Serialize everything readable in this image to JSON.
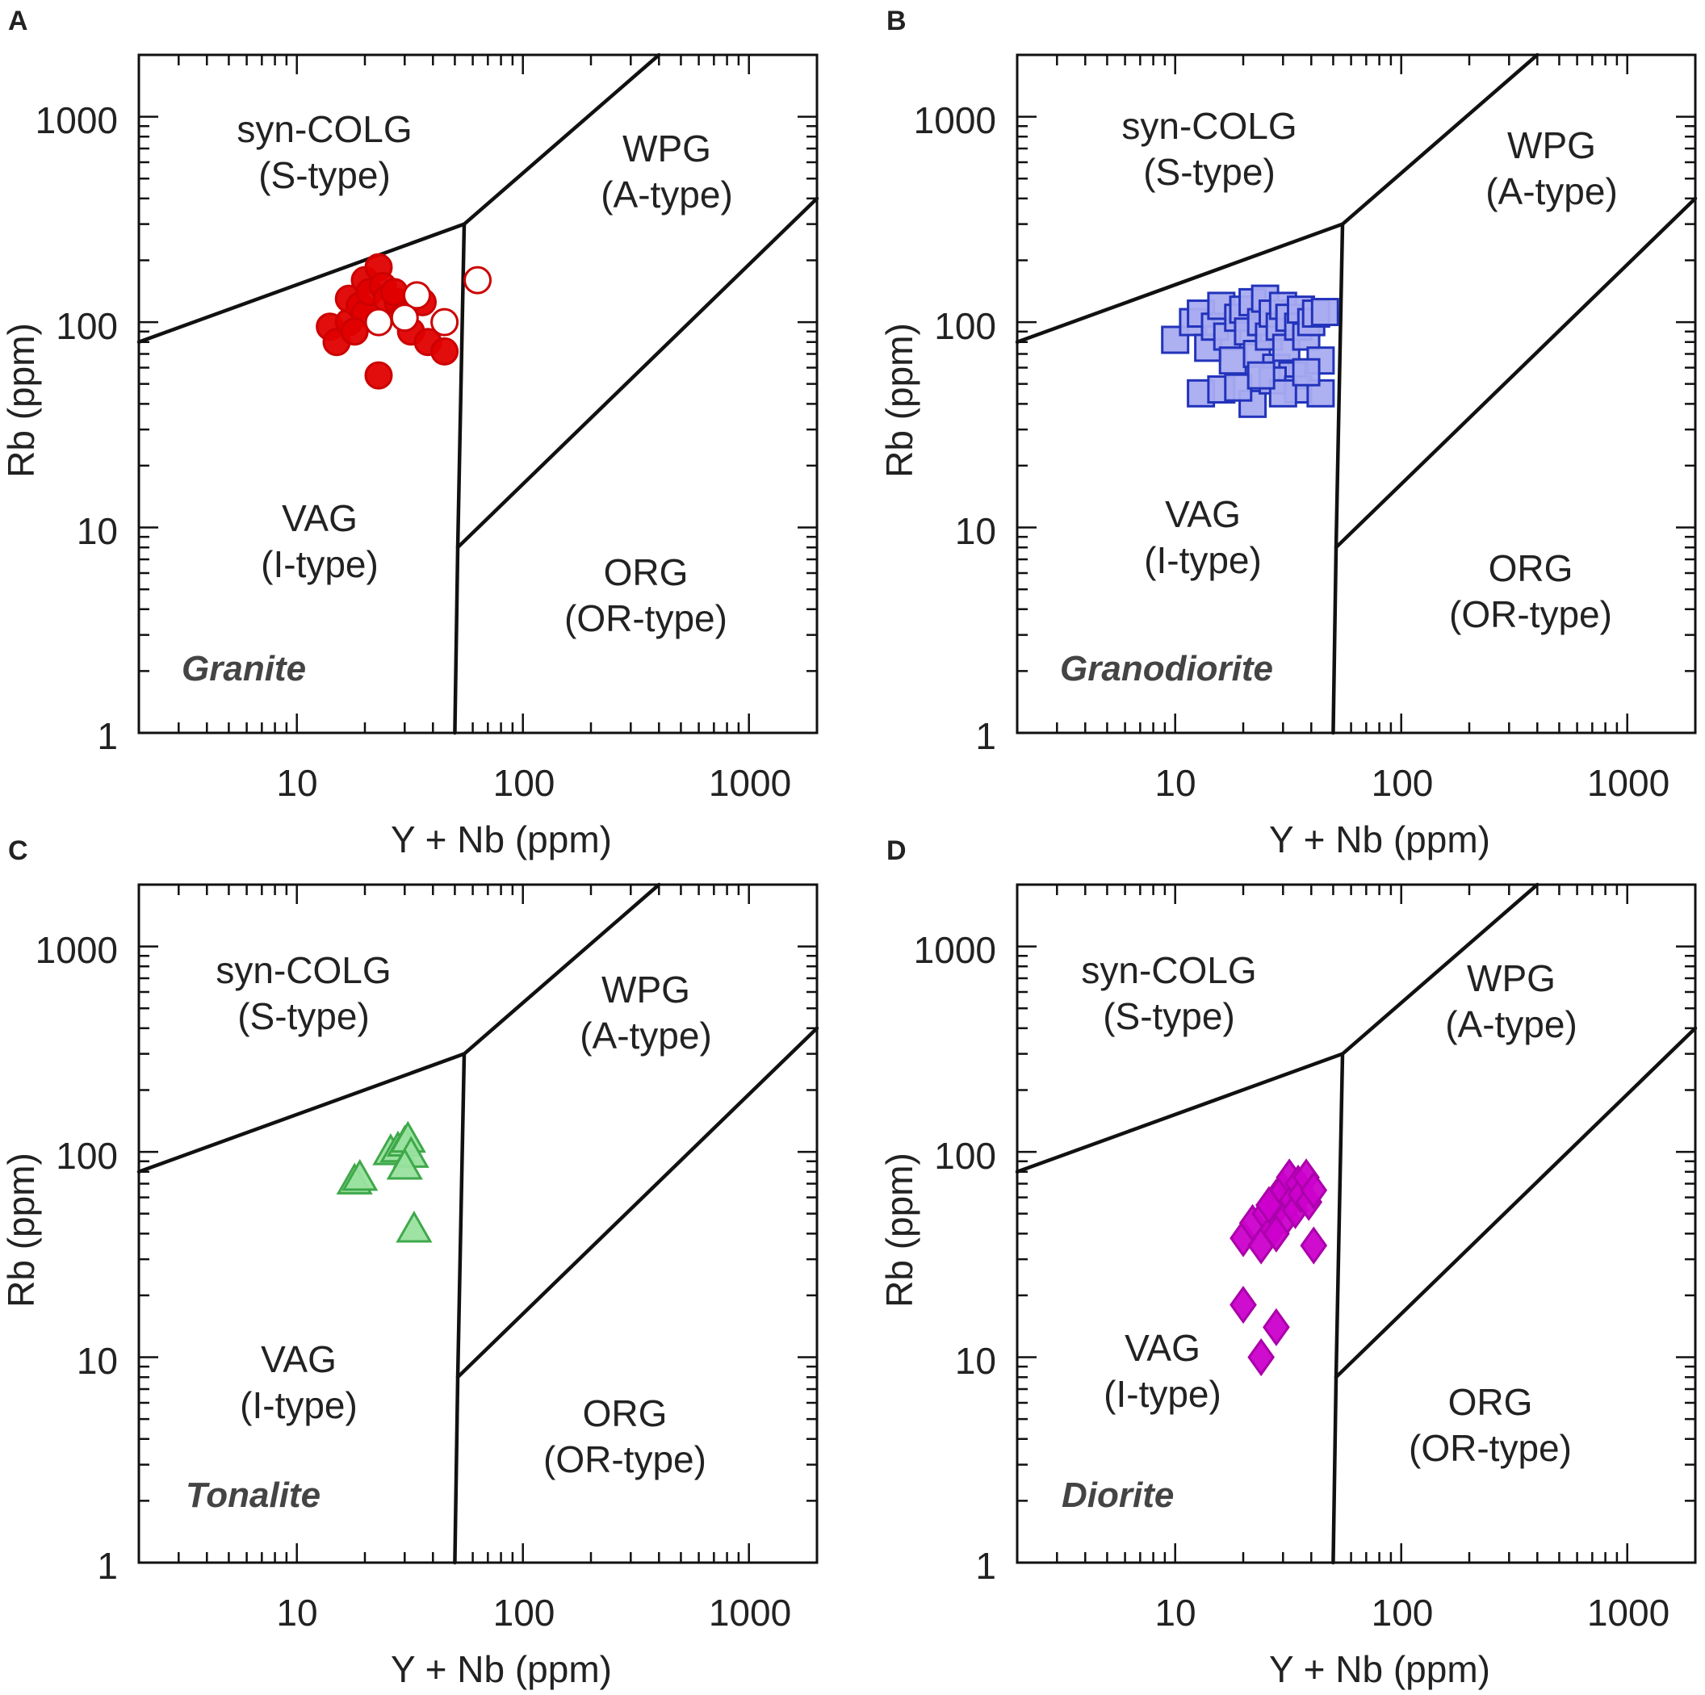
{
  "figure": {
    "description_free": true,
    "panels": [
      "A",
      "B",
      "C",
      "D"
    ]
  },
  "chart_data": [
    {
      "type": "scatter",
      "panel": "A",
      "rock_type": "Granite",
      "xlabel": "Y + Nb (ppm)",
      "ylabel": "Rb (ppm)",
      "xscale": "log",
      "yscale": "log",
      "xlim": [
        2,
        2000
      ],
      "ylim": [
        1,
        2000
      ],
      "x_ticks": [
        "10",
        "100",
        "1000"
      ],
      "y_ticks": [
        "1",
        "10",
        "100",
        "1000"
      ],
      "regions": [
        {
          "name": "syn-COLG",
          "type": "(S-type)"
        },
        {
          "name": "WPG",
          "type": "(A-type)"
        },
        {
          "name": "VAG",
          "type": "(I-type)"
        },
        {
          "name": "ORG",
          "type": "(OR-type)"
        }
      ],
      "boundaries": [
        {
          "from": [
            2,
            80
          ],
          "to": [
            55,
            300
          ]
        },
        {
          "from": [
            55,
            300
          ],
          "to": [
            400,
            2000
          ]
        },
        {
          "from": [
            55,
            300
          ],
          "to": [
            51.5,
            8
          ]
        },
        {
          "from": [
            51.5,
            8
          ],
          "to": [
            2000,
            400
          ]
        },
        {
          "from": [
            51.5,
            8
          ],
          "to": [
            50,
            1
          ]
        }
      ],
      "marker": {
        "shape": "circle",
        "fill": "#e00000",
        "stroke": "#cc0000"
      },
      "series": [
        {
          "name": "filled",
          "filled": true,
          "points": [
            [
              14,
              95
            ],
            [
              15,
              80
            ],
            [
              17,
              100
            ],
            [
              17,
              130
            ],
            [
              19,
              120
            ],
            [
              20,
              160
            ],
            [
              20,
              110
            ],
            [
              21,
              140
            ],
            [
              23,
              185
            ],
            [
              24,
              150
            ],
            [
              25,
              130
            ],
            [
              28,
              125
            ],
            [
              30,
              110
            ],
            [
              32,
              90
            ],
            [
              36,
              125
            ],
            [
              38,
              80
            ],
            [
              45,
              72
            ],
            [
              23,
              55
            ],
            [
              27,
              140
            ],
            [
              18,
              90
            ]
          ]
        },
        {
          "name": "open",
          "filled": false,
          "points": [
            [
              23,
              100
            ],
            [
              34,
              135
            ],
            [
              45,
              100
            ],
            [
              63,
              160
            ],
            [
              30,
              105
            ]
          ]
        }
      ]
    },
    {
      "type": "scatter",
      "panel": "B",
      "rock_type": "Granodiorite",
      "xlabel": "Y + Nb (ppm)",
      "ylabel": "Rb (ppm)",
      "xscale": "log",
      "yscale": "log",
      "xlim": [
        2,
        2000
      ],
      "ylim": [
        1,
        2000
      ],
      "x_ticks": [
        "10",
        "100",
        "1000"
      ],
      "y_ticks": [
        "1",
        "10",
        "100",
        "1000"
      ],
      "regions": [
        {
          "name": "syn-COLG",
          "type": "(S-type)"
        },
        {
          "name": "WPG",
          "type": "(A-type)"
        },
        {
          "name": "VAG",
          "type": "(I-type)"
        },
        {
          "name": "ORG",
          "type": "(OR-type)"
        }
      ],
      "boundaries": [
        {
          "from": [
            2,
            80
          ],
          "to": [
            55,
            300
          ]
        },
        {
          "from": [
            55,
            300
          ],
          "to": [
            400,
            2000
          ]
        },
        {
          "from": [
            55,
            300
          ],
          "to": [
            51.5,
            8
          ]
        },
        {
          "from": [
            51.5,
            8
          ],
          "to": [
            2000,
            400
          ]
        },
        {
          "from": [
            51.5,
            8
          ],
          "to": [
            50,
            1
          ]
        }
      ],
      "marker": {
        "shape": "square",
        "fill": "#a9acf0",
        "stroke": "#2233bb"
      },
      "series": [
        {
          "name": "samples",
          "filled": true,
          "points": [
            [
              10,
              82
            ],
            [
              12,
              100
            ],
            [
              13,
              110
            ],
            [
              14,
              75
            ],
            [
              15,
              95
            ],
            [
              16,
              120
            ],
            [
              17,
              85
            ],
            [
              18,
              65
            ],
            [
              19,
              105
            ],
            [
              20,
              115
            ],
            [
              21,
              90
            ],
            [
              22,
              125
            ],
            [
              23,
              70
            ],
            [
              24,
              100
            ],
            [
              25,
              130
            ],
            [
              26,
              85
            ],
            [
              27,
              110
            ],
            [
              28,
              60
            ],
            [
              29,
              95
            ],
            [
              30,
              120
            ],
            [
              31,
              75
            ],
            [
              32,
              105
            ],
            [
              33,
              55
            ],
            [
              35,
              95
            ],
            [
              36,
              115
            ],
            [
              38,
              85
            ],
            [
              40,
              100
            ],
            [
              42,
              110
            ],
            [
              44,
              65
            ],
            [
              46,
              112
            ],
            [
              13,
              45
            ],
            [
              16,
              47
            ],
            [
              22,
              40
            ],
            [
              27,
              52
            ],
            [
              35,
              47
            ],
            [
              44,
              45
            ],
            [
              19,
              48
            ],
            [
              30,
              45
            ],
            [
              38,
              57
            ],
            [
              24,
              55
            ]
          ]
        }
      ]
    },
    {
      "type": "scatter",
      "panel": "C",
      "rock_type": "Tonalite",
      "xlabel": "Y + Nb (ppm)",
      "ylabel": "Rb (ppm)",
      "xscale": "log",
      "yscale": "log",
      "xlim": [
        2,
        2000
      ],
      "ylim": [
        1,
        2000
      ],
      "x_ticks": [
        "10",
        "100",
        "1000"
      ],
      "y_ticks": [
        "1",
        "10",
        "100",
        "1000"
      ],
      "regions": [
        {
          "name": "syn-COLG",
          "type": "(S-type)"
        },
        {
          "name": "WPG",
          "type": "(A-type)"
        },
        {
          "name": "VAG",
          "type": "(I-type)"
        },
        {
          "name": "ORG",
          "type": "(OR-type)"
        }
      ],
      "boundaries": [
        {
          "from": [
            2,
            80
          ],
          "to": [
            55,
            300
          ]
        },
        {
          "from": [
            55,
            300
          ],
          "to": [
            400,
            2000
          ]
        },
        {
          "from": [
            55,
            300
          ],
          "to": [
            51.5,
            8
          ]
        },
        {
          "from": [
            51.5,
            8
          ],
          "to": [
            2000,
            400
          ]
        },
        {
          "from": [
            51.5,
            8
          ],
          "to": [
            50,
            1
          ]
        }
      ],
      "marker": {
        "shape": "triangle",
        "fill": "#99e29f",
        "stroke": "#3fa84a"
      },
      "series": [
        {
          "name": "samples",
          "filled": true,
          "points": [
            [
              18,
              72
            ],
            [
              19,
              75
            ],
            [
              26,
              100
            ],
            [
              28,
              103
            ],
            [
              30,
              110
            ],
            [
              31,
              115
            ],
            [
              32,
              97
            ],
            [
              30,
              85
            ],
            [
              33,
              42
            ]
          ]
        }
      ]
    },
    {
      "type": "scatter",
      "panel": "D",
      "rock_type": "Diorite",
      "xlabel": "Y + Nb (ppm)",
      "ylabel": "Rb (ppm)",
      "xscale": "log",
      "yscale": "log",
      "xlim": [
        2,
        2000
      ],
      "ylim": [
        1,
        2000
      ],
      "x_ticks": [
        "10",
        "100",
        "1000"
      ],
      "y_ticks": [
        "1",
        "10",
        "100",
        "1000"
      ],
      "regions": [
        {
          "name": "syn-COLG",
          "type": "(S-type)"
        },
        {
          "name": "WPG",
          "type": "(A-type)"
        },
        {
          "name": "VAG",
          "type": "(I-type)"
        },
        {
          "name": "ORG",
          "type": "(OR-type)"
        }
      ],
      "boundaries": [
        {
          "from": [
            2,
            80
          ],
          "to": [
            55,
            300
          ]
        },
        {
          "from": [
            55,
            300
          ],
          "to": [
            400,
            2000
          ]
        },
        {
          "from": [
            55,
            300
          ],
          "to": [
            51.5,
            8
          ]
        },
        {
          "from": [
            51.5,
            8
          ],
          "to": [
            2000,
            400
          ]
        },
        {
          "from": [
            51.5,
            8
          ],
          "to": [
            50,
            1
          ]
        }
      ],
      "marker": {
        "shape": "diamond",
        "fill": "#cc00cc",
        "stroke": "#aa00aa"
      },
      "series": [
        {
          "name": "samples",
          "filled": true,
          "points": [
            [
              20,
              38
            ],
            [
              22,
              45
            ],
            [
              24,
              35
            ],
            [
              25,
              50
            ],
            [
              27,
              42
            ],
            [
              28,
              60
            ],
            [
              29,
              55
            ],
            [
              30,
              65
            ],
            [
              31,
              48
            ],
            [
              32,
              75
            ],
            [
              33,
              58
            ],
            [
              34,
              52
            ],
            [
              35,
              70
            ],
            [
              36,
              62
            ],
            [
              38,
              75
            ],
            [
              39,
              57
            ],
            [
              41,
              65
            ],
            [
              41,
              35
            ],
            [
              28,
              40
            ],
            [
              26,
              55
            ],
            [
              20,
              18
            ],
            [
              28,
              14
            ],
            [
              24,
              10
            ]
          ]
        }
      ]
    }
  ]
}
